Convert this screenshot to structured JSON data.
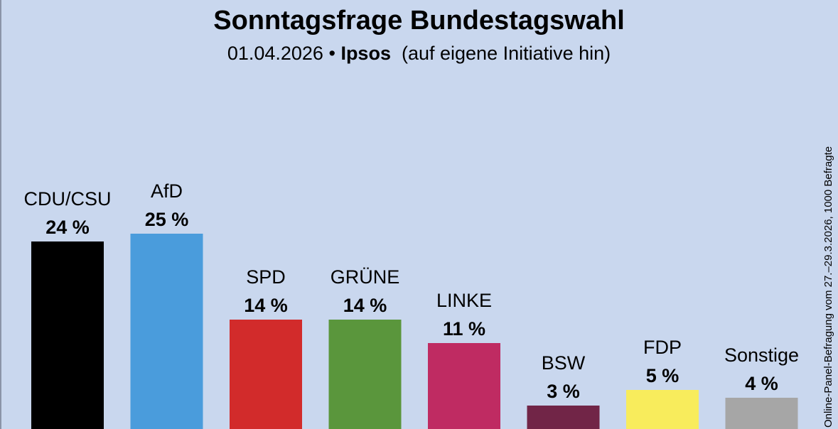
{
  "header": {
    "title": "Sonntagsfrage Bundestagswahl",
    "date": "01.04.2026",
    "bullet": "•",
    "institute": "Ipsos",
    "note": "(auf eigene Initiative hin)"
  },
  "side_note": "Online-Panel-Befragung vom 27.–29.3.2026, 1000 Befragte",
  "chart_data": {
    "type": "bar",
    "title": "Sonntagsfrage Bundestagswahl",
    "subtitle": "01.04.2026 • Ipsos (auf eigene Initiative hin)",
    "unit": "%",
    "categories": [
      "CDU/CSU",
      "AfD",
      "SPD",
      "GRÜNE",
      "LINKE",
      "BSW",
      "FDP",
      "Sonstige"
    ],
    "values": [
      24,
      25,
      14,
      14,
      11,
      3,
      5,
      4
    ],
    "value_labels": [
      "24 %",
      "25 %",
      "14 %",
      "14 %",
      "11 %",
      "3 %",
      "5 %",
      "4 %"
    ],
    "colors": [
      "#000000",
      "#4a9cdc",
      "#d22b2b",
      "#5a963c",
      "#bf2b62",
      "#712547",
      "#f8ec5c",
      "#a6a6a6"
    ],
    "grid": false,
    "legend": "none"
  }
}
